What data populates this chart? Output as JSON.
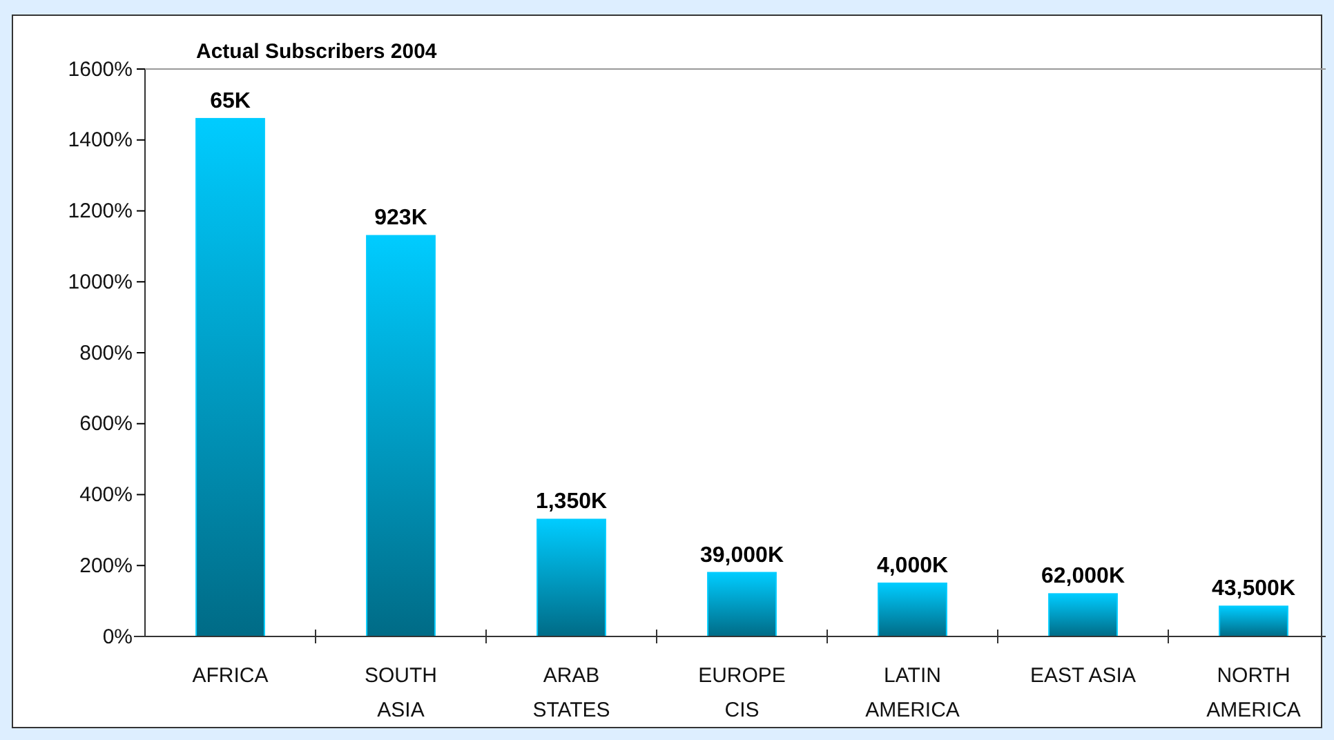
{
  "chart_data": {
    "type": "bar",
    "title": "Actual Subscribers 2004",
    "categories": [
      "AFRICA",
      "SOUTH\nASIA",
      "ARAB\nSTATES",
      "EUROPE\nCIS",
      "LATIN\nAMERICA",
      "EAST ASIA",
      "NORTH\nAMERICA"
    ],
    "values": [
      1460,
      1130,
      330,
      180,
      150,
      120,
      85
    ],
    "annotations": [
      {
        "text": "65K",
        "x": "AFRICA",
        "y": 1460
      },
      {
        "text": "923K",
        "x": "SOUTH\nASIA",
        "y": 1130
      },
      {
        "text": "1,350K",
        "x": "ARAB\nSTATES",
        "y": 330
      },
      {
        "text": "39,000K",
        "x": "EUROPE\nCIS",
        "y": 180
      },
      {
        "text": "4,000K",
        "x": "LATIN\nAMERICA",
        "y": 150
      },
      {
        "text": "62,000K",
        "x": "EAST ASIA",
        "y": 120
      },
      {
        "text": "43,500K",
        "x": "NORTH\nAMERICA",
        "y": 85
      }
    ],
    "color": "#00ccff",
    "ylim": [
      0,
      1600
    ],
    "yticks": [
      {
        "value": 0,
        "label": "0%"
      },
      {
        "value": 200,
        "label": "200%"
      },
      {
        "value": 400,
        "label": "400%"
      },
      {
        "value": 600,
        "label": "600%"
      },
      {
        "value": 800,
        "label": "800%"
      },
      {
        "value": 1000,
        "label": "1000%"
      },
      {
        "value": 1200,
        "label": "1200%"
      },
      {
        "value": 1400,
        "label": "1400%"
      },
      {
        "value": 1600,
        "label": "1600%"
      }
    ],
    "grid": false
  }
}
